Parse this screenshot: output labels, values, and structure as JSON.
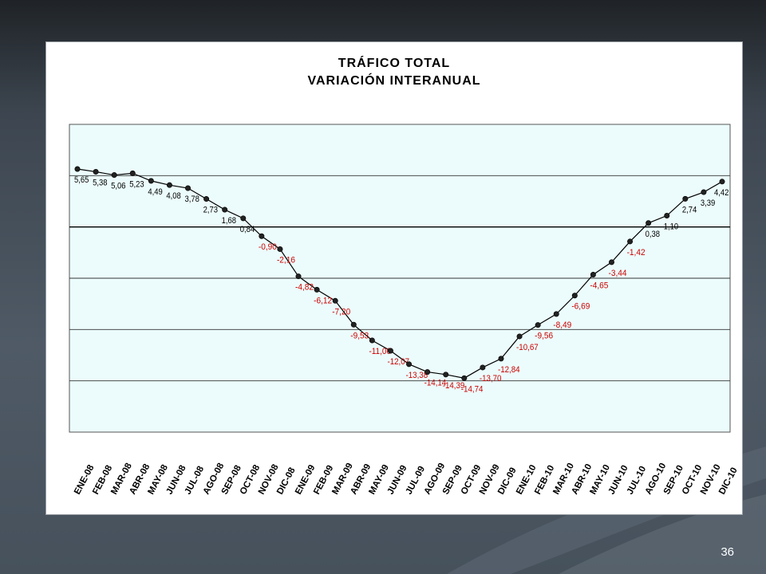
{
  "slide": {
    "page_number": "36"
  },
  "chart_data": {
    "type": "line",
    "title": "TRÁFICO TOTAL",
    "subtitle": "VARIACIÓN INTERANUAL",
    "xlabel": "",
    "ylabel": "",
    "ylim": [
      -20,
      10
    ],
    "grid": true,
    "legend": "none",
    "categories": [
      "ENE-08",
      "FEB-08",
      "MAR-08",
      "ABR-08",
      "MAY-08",
      "JUN-08",
      "JUL-08",
      "AGO-08",
      "SEP-08",
      "OCT-08",
      "NOV-08",
      "DIC-08",
      "ENE-09",
      "FEB-09",
      "MAR-09",
      "ABR-09",
      "MAY-09",
      "JUN-09",
      "JUL-09",
      "AGO-09",
      "SEP-09",
      "OCT-09",
      "NOV-09",
      "DIC-09",
      "ENE-10",
      "FEB-10",
      "MAR-10",
      "ABR-10",
      "MAY-10",
      "JUN-10",
      "JUL-10",
      "AGO-10",
      "SEP-10",
      "OCT-10",
      "NOV-10",
      "DIC-10"
    ],
    "series": [
      {
        "values": [
          5.65,
          5.38,
          5.06,
          5.23,
          4.49,
          4.08,
          3.78,
          2.73,
          1.68,
          0.84,
          -0.9,
          -2.16,
          -4.82,
          -6.12,
          -7.2,
          -9.53,
          -11.06,
          -12.07,
          -13.38,
          -14.14,
          -14.39,
          -14.74,
          -13.7,
          -12.84,
          -10.67,
          -9.56,
          -8.49,
          -6.69,
          -4.65,
          -3.44,
          -1.42,
          0.38,
          1.1,
          2.74,
          3.39,
          4.42
        ],
        "labels": [
          "5,65",
          "5,38",
          "5,06",
          "5,23",
          "4,49",
          "4,08",
          "3,78",
          "2,73",
          "1,68",
          "0,84",
          "-0,90",
          "-2,16",
          "-4,82",
          "-6,12",
          "-7,20",
          "-9,53",
          "-11,06",
          "-12,07",
          "-13,38",
          "-14,14",
          "-14,39",
          "-14,74",
          "-13,70",
          "-12,84",
          "-10,67",
          "-9,56",
          "-8,49",
          "-6,69",
          "-4,65",
          "-3,44",
          "-1,42",
          "0,38",
          "1,10",
          "2,74",
          "3,39",
          "4,42"
        ]
      }
    ]
  },
  "colors": {
    "plot_bg": "#ecfcfc",
    "line": "#000000",
    "positive_label": "#000000",
    "negative_label": "#cc0000"
  }
}
